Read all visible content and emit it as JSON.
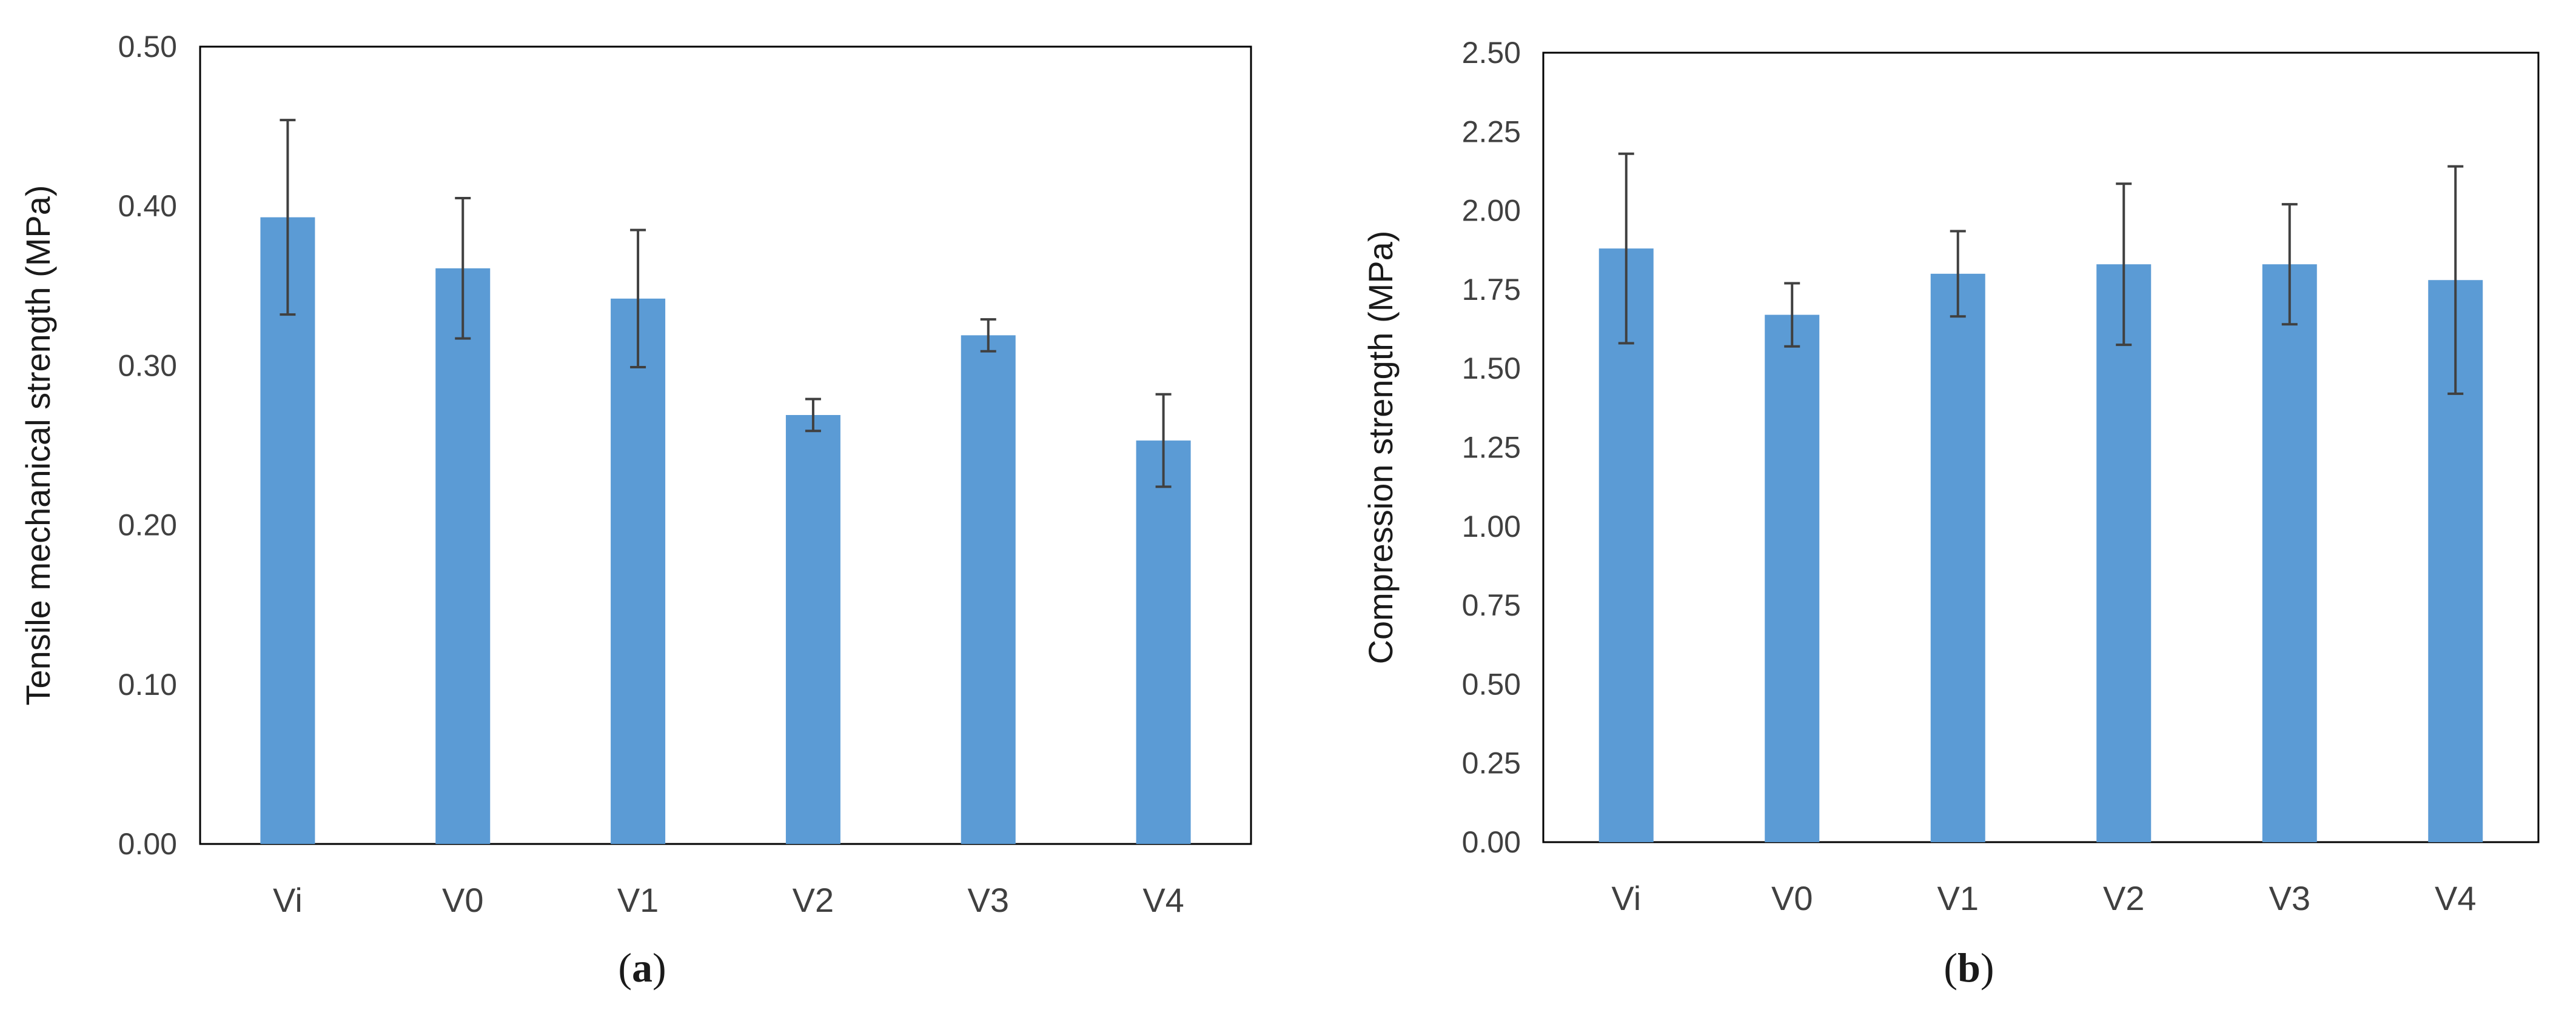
{
  "chart_data": [
    {
      "type": "bar",
      "panel": "a",
      "title": "",
      "xlabel": "",
      "ylabel": "Tensile mechanical strength (MPa)",
      "categories": [
        "Vi",
        "V0",
        "V1",
        "V2",
        "V3",
        "V4"
      ],
      "values": [
        0.393,
        0.361,
        0.342,
        0.269,
        0.319,
        0.253
      ],
      "errors": [
        0.061,
        0.044,
        0.043,
        0.01,
        0.01,
        0.029
      ],
      "ylim": [
        0,
        0.5
      ],
      "yticks": [
        0,
        0.1,
        0.2,
        0.3,
        0.4,
        0.5
      ],
      "ytick_labels": [
        "0.00",
        "0.10",
        "0.20",
        "0.30",
        "0.40",
        "0.50"
      ],
      "grid": false,
      "bar_color": "#5b9bd5"
    },
    {
      "type": "bar",
      "panel": "b",
      "title": "",
      "xlabel": "",
      "ylabel": "Compression strength (MPa)",
      "categories": [
        "Vi",
        "V0",
        "V1",
        "V2",
        "V3",
        "V4"
      ],
      "values": [
        1.88,
        1.67,
        1.8,
        1.83,
        1.83,
        1.78
      ],
      "errors": [
        0.3,
        0.1,
        0.135,
        0.255,
        0.19,
        0.36
      ],
      "ylim": [
        0,
        2.5
      ],
      "yticks": [
        0,
        0.25,
        0.5,
        0.75,
        1,
        1.25,
        1.5,
        1.75,
        2,
        2.25,
        2.5
      ],
      "ytick_labels": [
        "0.00",
        "0.25",
        "0.50",
        "0.75",
        "1.00",
        "1.25",
        "1.50",
        "1.75",
        "2.00",
        "2.25",
        "2.50"
      ],
      "grid": false,
      "bar_color": "#5b9bd5"
    }
  ],
  "panel_labels": [
    "a",
    "b"
  ],
  "colors": {
    "bar": "#5b9bd5",
    "axis": "#000000",
    "error_bar": "#404040"
  }
}
